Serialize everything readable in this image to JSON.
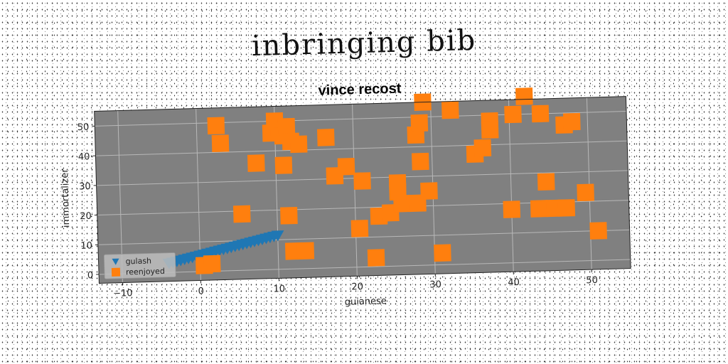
{
  "page": {
    "title": "inbringing bib"
  },
  "chart_data": {
    "type": "scatter",
    "title": "vince recost",
    "xlabel": "guianese",
    "ylabel": "immortalizer",
    "xlim": [
      -13,
      55
    ],
    "ylim": [
      -3,
      55
    ],
    "xticks": [
      -10,
      0,
      10,
      20,
      30,
      40,
      50
    ],
    "yticks": [
      0,
      10,
      20,
      30,
      40,
      50
    ],
    "grid": true,
    "legend_position": "bottom-left",
    "background": "#808080",
    "series": [
      {
        "name": "gulash",
        "marker": "triangle-down",
        "color": "#1f77b4",
        "points": [
          [
            -4.0,
            3.0
          ],
          [
            -3.5,
            3.3
          ],
          [
            -3.0,
            3.6
          ],
          [
            -2.5,
            3.9
          ],
          [
            -2.0,
            4.2
          ],
          [
            -1.5,
            4.5
          ],
          [
            -1.0,
            4.8
          ],
          [
            -0.5,
            5.1
          ],
          [
            0.0,
            5.4
          ],
          [
            0.5,
            5.7
          ],
          [
            1.0,
            6.0
          ],
          [
            1.5,
            6.3
          ],
          [
            2.0,
            6.6
          ],
          [
            2.5,
            6.9
          ],
          [
            3.0,
            7.2
          ],
          [
            3.5,
            7.5
          ],
          [
            4.0,
            7.8
          ],
          [
            4.5,
            8.1
          ],
          [
            5.0,
            8.4
          ],
          [
            5.5,
            8.7
          ],
          [
            6.0,
            9.0
          ],
          [
            6.5,
            9.3
          ],
          [
            7.0,
            9.6
          ],
          [
            7.5,
            9.9
          ],
          [
            8.0,
            10.2
          ],
          [
            8.5,
            10.5
          ],
          [
            9.0,
            10.8
          ],
          [
            9.5,
            11.1
          ],
          [
            10.0,
            11.4
          ]
        ]
      },
      {
        "name": "reenjoyed",
        "marker": "square",
        "color": "#ff7f0e",
        "points": [
          [
            2.5,
            49
          ],
          [
            3.0,
            43
          ],
          [
            7.5,
            36
          ],
          [
            5.5,
            19
          ],
          [
            0.5,
            2
          ],
          [
            1.5,
            2.5
          ],
          [
            9.5,
            46
          ],
          [
            10.0,
            50
          ],
          [
            10.5,
            47
          ],
          [
            11.0,
            45
          ],
          [
            11.5,
            48
          ],
          [
            12.0,
            43
          ],
          [
            13.0,
            42
          ],
          [
            11.0,
            35
          ],
          [
            11.5,
            18
          ],
          [
            12.0,
            6
          ],
          [
            13.5,
            6
          ],
          [
            16.5,
            44
          ],
          [
            17.5,
            31
          ],
          [
            19.0,
            34
          ],
          [
            21.0,
            29
          ],
          [
            20.5,
            13
          ],
          [
            22.5,
            3
          ],
          [
            23.0,
            17
          ],
          [
            24.5,
            18
          ],
          [
            26.0,
            21
          ],
          [
            25.5,
            28
          ],
          [
            25.5,
            25
          ],
          [
            28.0,
            44
          ],
          [
            28.5,
            48
          ],
          [
            28.5,
            35
          ],
          [
            28.0,
            21
          ],
          [
            29.5,
            25
          ],
          [
            29.0,
            55
          ],
          [
            31.0,
            4
          ],
          [
            32.5,
            52
          ],
          [
            35.5,
            37
          ],
          [
            36.5,
            39
          ],
          [
            37.5,
            48
          ],
          [
            37.5,
            45
          ],
          [
            40.5,
            50
          ],
          [
            42.0,
            56
          ],
          [
            44.0,
            50
          ],
          [
            47.0,
            46
          ],
          [
            48.0,
            47
          ],
          [
            44.5,
            27
          ],
          [
            40.0,
            18
          ],
          [
            43.5,
            18
          ],
          [
            45.5,
            18
          ],
          [
            47.0,
            18
          ],
          [
            49.5,
            23
          ],
          [
            51.0,
            10
          ]
        ]
      }
    ]
  }
}
